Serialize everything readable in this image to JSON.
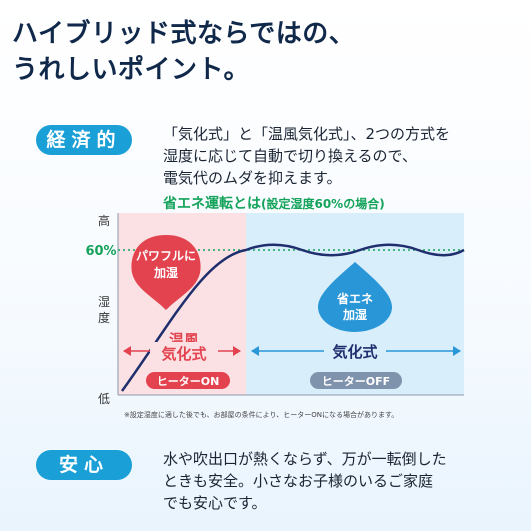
{
  "headline": {
    "line1": "ハイブリッド式ならではの、",
    "line2": "うれしいポイント。"
  },
  "economy": {
    "label": "経済的",
    "lines": [
      "「気化式」と「温風気化式」、2つの方式を",
      "湿度に応じて自動で切り換えるので、",
      "電気代のムダを抑えます。"
    ]
  },
  "chart": {
    "title_main": "省エネ運転とは",
    "title_sub": "(設定湿度60%の場合)",
    "y_high": "高",
    "y_low": "低",
    "y_label_1": "湿",
    "y_label_2": "度",
    "y_60": "60%",
    "bubble_left_1": "パワフルに",
    "bubble_left_2": "加湿",
    "bubble_right_1": "省エネ",
    "bubble_right_2": "加湿",
    "zone_left_1": "温風",
    "zone_left_2": "気化式",
    "zone_right": "気化式",
    "badge_left": "ヒーターON",
    "badge_right": "ヒーターOFF",
    "note": "※設定湿度に適した後でも、お部屋の条件により、ヒーターONになる場合があります。",
    "colors": {
      "left_zone": "#fbe1e3",
      "right_zone": "#d9eefb",
      "curve": "#1f2f6e",
      "red": "#e2434f",
      "blue": "#2996d7",
      "green": "#14a35a"
    }
  },
  "chart_data": {
    "type": "line",
    "title": "省エネ運転とは(設定湿度60%の場合)",
    "ylabel": "湿度",
    "y_ticks": [
      "高",
      "60%",
      "低"
    ],
    "series": [
      {
        "values": [
          0,
          60,
          60,
          60,
          60,
          60
        ]
      }
    ]
  },
  "safety": {
    "label": "安心",
    "lines": [
      "水や吹出口が熱くならず、万が一転倒した",
      "ときも安全。小さなお子様のいるご家庭",
      "でも安心です。"
    ]
  }
}
